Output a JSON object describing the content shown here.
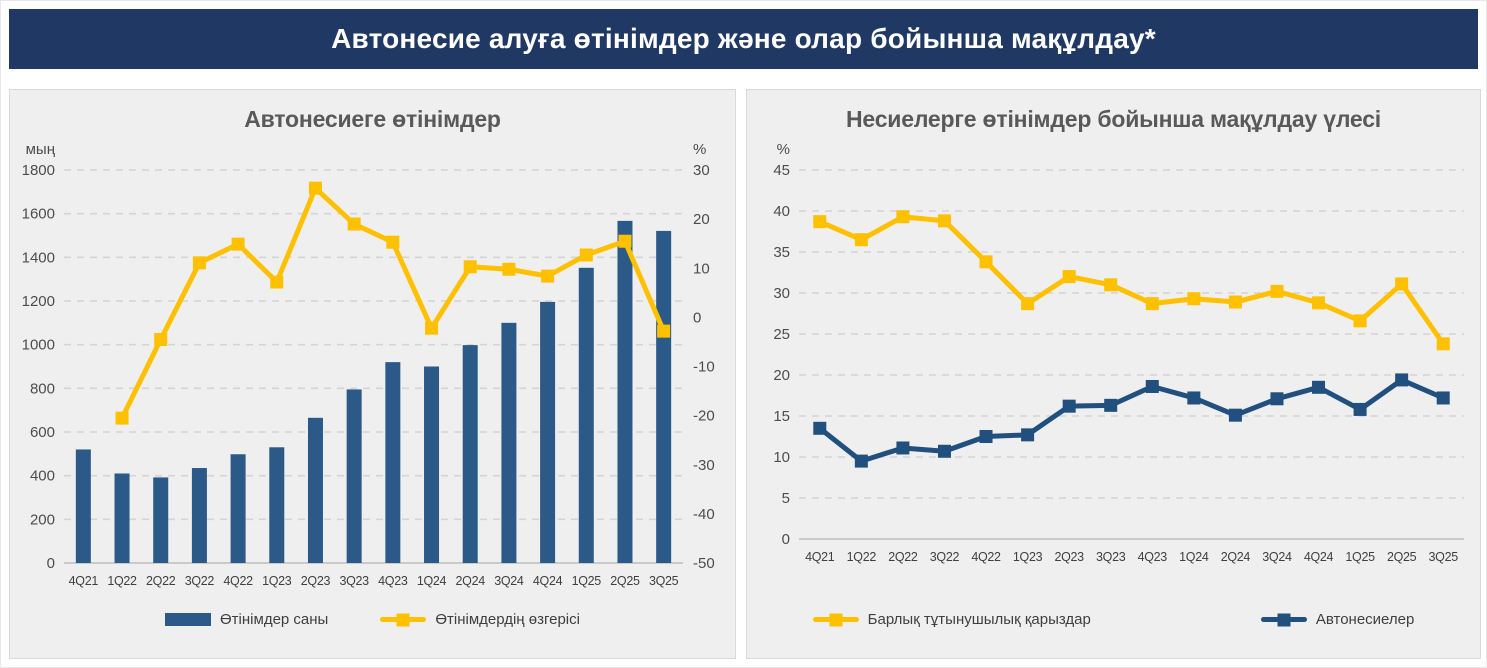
{
  "banner": {
    "title": "Автонесие алуға өтінімдер және олар бойынша мақұлдау*"
  },
  "colors": {
    "banner_bg": "#1F3864",
    "panel_bg": "#EFEFEF",
    "bar_blue": "#2B5A88",
    "line_yellow": "#FFC000",
    "line_navy": "#214F7E",
    "title_gray": "#595959"
  },
  "chart_data": [
    {
      "type": "bar",
      "title": "Автонесиеге өтінімдер",
      "categories": [
        "4Q21",
        "1Q22",
        "2Q22",
        "3Q22",
        "4Q22",
        "1Q23",
        "2Q23",
        "3Q23",
        "4Q23",
        "1Q24",
        "2Q24",
        "3Q24",
        "4Q24",
        "1Q25",
        "2Q25",
        "3Q25"
      ],
      "axes": {
        "left": {
          "label": "мың",
          "min": 0,
          "max": 1800,
          "step": 200
        },
        "right": {
          "label": "%",
          "min": -50,
          "max": 30,
          "step": 10
        }
      },
      "grid": true,
      "legend_position": "bottom",
      "series": [
        {
          "name": "Өтінімдер саны",
          "type": "bar",
          "axis": "left",
          "color": "#2B5A88",
          "values": [
            520,
            410,
            392,
            435,
            498,
            530,
            665,
            795,
            920,
            900,
            998,
            1100,
            1196,
            1352,
            1567,
            1521
          ]
        },
        {
          "name": "Өтінімдердің өзгерісі",
          "type": "line",
          "axis": "right",
          "color": "#FFC000",
          "values": [
            null,
            -20.5,
            -4.5,
            11.1,
            14.9,
            7.2,
            26.3,
            19.0,
            15.3,
            -2.2,
            10.3,
            9.8,
            8.4,
            12.7,
            15.5,
            -2.8
          ]
        }
      ]
    },
    {
      "type": "line",
      "title": "Несиелерге өтінімдер бойынша мақұлдау үлесі",
      "categories": [
        "4Q21",
        "1Q22",
        "2Q22",
        "3Q22",
        "4Q22",
        "1Q23",
        "2Q23",
        "3Q23",
        "4Q23",
        "1Q24",
        "2Q24",
        "3Q24",
        "4Q24",
        "1Q25",
        "2Q25",
        "3Q25"
      ],
      "axes": {
        "left": {
          "label": "%",
          "min": 0,
          "max": 45,
          "step": 5
        }
      },
      "grid": true,
      "legend_position": "bottom",
      "series": [
        {
          "name": "Барлық тұтынушылық қарыздар",
          "type": "line",
          "axis": "left",
          "color": "#FFC000",
          "values": [
            38.7,
            36.5,
            39.3,
            38.8,
            33.8,
            28.7,
            32.0,
            31.0,
            28.7,
            29.3,
            28.9,
            30.2,
            28.8,
            26.6,
            31.1,
            23.8
          ]
        },
        {
          "name": "Автонесиелер",
          "type": "line",
          "axis": "left",
          "color": "#214F7E",
          "values": [
            13.5,
            9.5,
            11.1,
            10.7,
            12.5,
            12.7,
            16.2,
            16.3,
            18.6,
            17.2,
            15.1,
            17.1,
            18.5,
            15.8,
            19.4,
            17.2
          ]
        }
      ]
    }
  ]
}
